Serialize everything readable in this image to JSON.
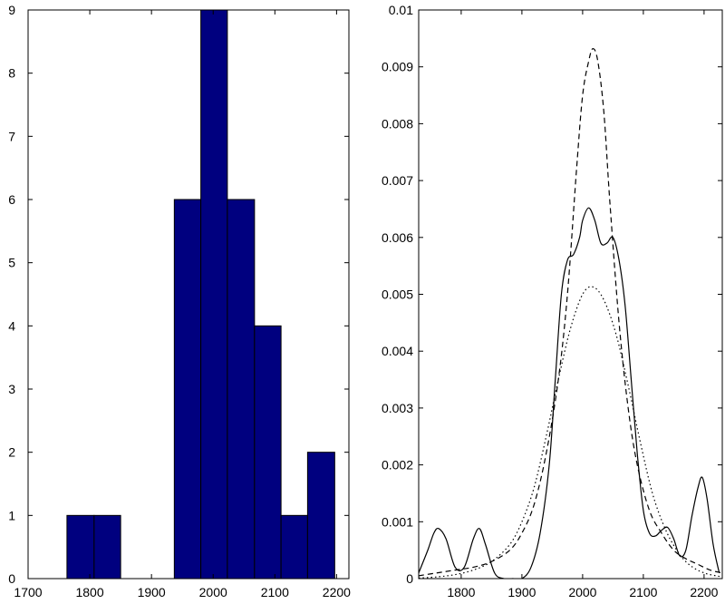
{
  "chart_data": [
    {
      "type": "bar",
      "subtype": "histogram",
      "title": "",
      "xlabel": "",
      "ylabel": "",
      "xlim": [
        1700,
        2220
      ],
      "ylim": [
        0,
        9
      ],
      "xticks": [
        1700,
        1800,
        1900,
        2000,
        2100,
        2200
      ],
      "xtick_labels": [
        "1700",
        "1800",
        "1900",
        "2000",
        "2100",
        "2200"
      ],
      "yticks": [
        0,
        1,
        2,
        3,
        4,
        5,
        6,
        7,
        8,
        9
      ],
      "ytick_labels": [
        "0",
        "1",
        "2",
        "3",
        "4",
        "5",
        "6",
        "7",
        "8",
        "9"
      ],
      "bin_edges": [
        1763,
        1807,
        1850,
        1893,
        1937,
        1980,
        2023,
        2067,
        2110,
        2153,
        2197
      ],
      "values": [
        1,
        1,
        0,
        0,
        6,
        9,
        6,
        4,
        1,
        2
      ],
      "bar_color": "#00007f",
      "grid": false
    },
    {
      "type": "line",
      "title": "",
      "xlabel": "",
      "ylabel": "",
      "xlim": [
        1730,
        2230
      ],
      "ylim": [
        0,
        0.01
      ],
      "xticks": [
        1800,
        1900,
        2000,
        2100,
        2200
      ],
      "xtick_labels": [
        "1800",
        "1900",
        "2000",
        "2100",
        "2200"
      ],
      "yticks": [
        0,
        0.001,
        0.002,
        0.003,
        0.004,
        0.005,
        0.006,
        0.007,
        0.008,
        0.009,
        0.01
      ],
      "ytick_labels": [
        "0",
        "0.001",
        "0.002",
        "0.003",
        "0.004",
        "0.005",
        "0.006",
        "0.007",
        "0.008",
        "0.009",
        "0.01"
      ],
      "grid": false,
      "series": [
        {
          "style": "solid",
          "color": "#000000",
          "x": [
            1730,
            1745,
            1755,
            1763,
            1775,
            1790,
            1805,
            1820,
            1830,
            1840,
            1855,
            1870,
            1885,
            1900,
            1915,
            1930,
            1945,
            1955,
            1965,
            1975,
            1985,
            1995,
            2000,
            2010,
            2020,
            2030,
            2040,
            2050,
            2060,
            2070,
            2080,
            2090,
            2100,
            2110,
            2120,
            2130,
            2140,
            2150,
            2160,
            2170,
            2180,
            2190,
            2197,
            2205,
            2215,
            2225
          ],
          "y": [
            0.0001,
            0.0005,
            0.0008,
            0.00088,
            0.0007,
            0.0002,
            0.0002,
            0.0007,
            0.00088,
            0.0006,
            0.0001,
            0.0,
            0.0,
            0.0,
            0.0002,
            0.0008,
            0.002,
            0.0035,
            0.005,
            0.0056,
            0.0057,
            0.006,
            0.0063,
            0.00652,
            0.0063,
            0.0059,
            0.0059,
            0.006,
            0.0056,
            0.0048,
            0.0035,
            0.0022,
            0.0012,
            0.0008,
            0.00075,
            0.00085,
            0.0009,
            0.0007,
            0.0004,
            0.0005,
            0.0011,
            0.0016,
            0.00178,
            0.0014,
            0.0006,
            0.0001
          ]
        },
        {
          "style": "dashed",
          "color": "#000000",
          "x": [
            1730,
            1760,
            1790,
            1820,
            1850,
            1880,
            1900,
            1920,
            1940,
            1960,
            1975,
            1990,
            2000,
            2010,
            2017,
            2025,
            2035,
            2045,
            2060,
            2075,
            2090,
            2110,
            2130,
            2150,
            2170,
            2190,
            2210,
            2230
          ],
          "y": [
            5e-05,
            0.0001,
            0.00015,
            0.0002,
            0.0003,
            0.0005,
            0.0008,
            0.0013,
            0.0022,
            0.0035,
            0.005,
            0.0072,
            0.0085,
            0.0091,
            0.00932,
            0.0091,
            0.0082,
            0.0066,
            0.0045,
            0.003,
            0.002,
            0.0012,
            0.0008,
            0.0005,
            0.00035,
            0.00025,
            0.00015,
            0.0001
          ]
        },
        {
          "style": "dotted",
          "color": "#000000",
          "x": [
            1730,
            1760,
            1790,
            1820,
            1850,
            1880,
            1900,
            1920,
            1940,
            1960,
            1980,
            2000,
            2017,
            2035,
            2055,
            2075,
            2095,
            2115,
            2135,
            2155,
            2175,
            2200,
            2230
          ],
          "y": [
            1e-05,
            3e-05,
            7e-05,
            0.00015,
            0.0003,
            0.0006,
            0.001,
            0.0016,
            0.0025,
            0.0035,
            0.0044,
            0.005,
            0.00513,
            0.0049,
            0.0043,
            0.0034,
            0.0024,
            0.0015,
            0.0009,
            0.0005,
            0.00025,
            0.0001,
            3e-05
          ]
        }
      ]
    }
  ]
}
